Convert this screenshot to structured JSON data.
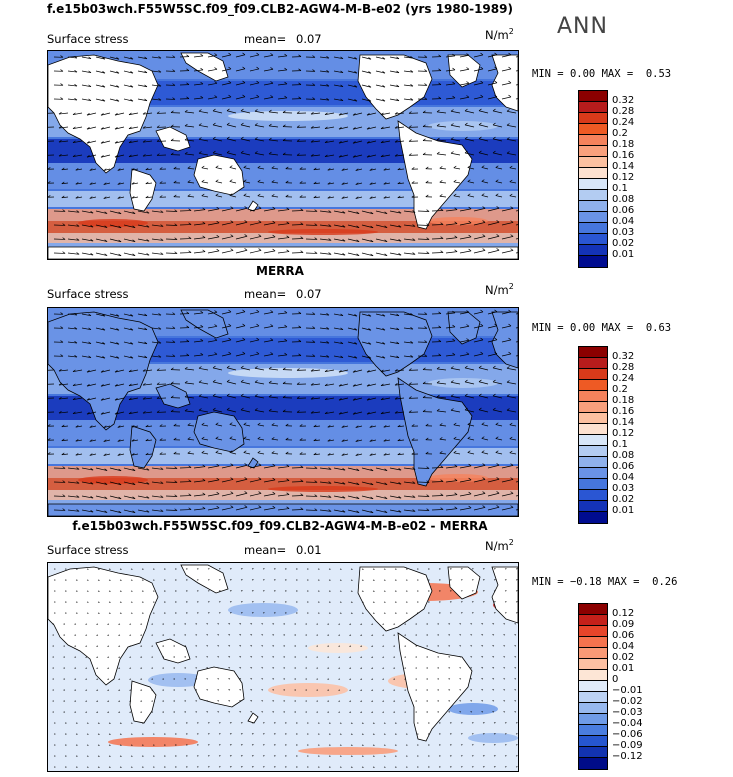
{
  "season_label": "ANN",
  "panels": [
    {
      "title": "f.e15b03wch.F55W5SC.f09_f09.CLB2-AGW4-M-B-e02 (yrs 1980-1989)",
      "variable": "Surface stress",
      "mean_label": "mean=",
      "mean_value": "0.07",
      "units": "N/m",
      "units_exp": "2",
      "min_label": "MIN =",
      "min_value": "0.00",
      "max_label": "MAX =",
      "max_value": "0.53",
      "levels": [
        "0.32",
        "0.28",
        "0.24",
        "0.2",
        "0.18",
        "0.16",
        "0.14",
        "0.12",
        "0.1",
        "0.08",
        "0.06",
        "0.04",
        "0.03",
        "0.02",
        "0.01"
      ],
      "colors": [
        "#8b0000",
        "#b71c1c",
        "#d83a1a",
        "#ee5a24",
        "#f5825c",
        "#f9a07c",
        "#fcc0a0",
        "#fde1d0",
        "#d8e6f8",
        "#b3ccf2",
        "#8fb1ec",
        "#6a93e6",
        "#4676dd",
        "#2a56d3",
        "#1433b8",
        "#000c90"
      ],
      "style": "abs"
    },
    {
      "title": "MERRA",
      "variable": "Surface stress",
      "mean_label": "mean=",
      "mean_value": "0.07",
      "units": "N/m",
      "units_exp": "2",
      "min_label": "MIN =",
      "min_value": "0.00",
      "max_label": "MAX =",
      "max_value": "0.63",
      "levels": [
        "0.32",
        "0.28",
        "0.24",
        "0.2",
        "0.18",
        "0.16",
        "0.14",
        "0.12",
        "0.1",
        "0.08",
        "0.06",
        "0.04",
        "0.03",
        "0.02",
        "0.01"
      ],
      "colors": [
        "#8b0000",
        "#b71c1c",
        "#d83a1a",
        "#ee5a24",
        "#f5825c",
        "#f9a07c",
        "#fcc0a0",
        "#fde1d0",
        "#d8e6f8",
        "#b3ccf2",
        "#8fb1ec",
        "#6a93e6",
        "#4676dd",
        "#2a56d3",
        "#1433b8",
        "#000c90"
      ],
      "style": "abs"
    },
    {
      "title": "f.e15b03wch.F55W5SC.f09_f09.CLB2-AGW4-M-B-e02 - MERRA",
      "variable": "Surface stress",
      "mean_label": "mean=",
      "mean_value": "0.01",
      "units": "N/m",
      "units_exp": "2",
      "min_label": "MIN =",
      "min_value": "−0.18",
      "max_label": "MAX =",
      "max_value": "0.26",
      "levels": [
        "0.12",
        "0.09",
        "0.06",
        "0.04",
        "0.02",
        "0.01",
        "0",
        "−0.01",
        "−0.02",
        "−0.03",
        "−0.04",
        "−0.06",
        "−0.09",
        "−0.12"
      ],
      "colors": [
        "#8b0000",
        "#c4201a",
        "#e6452a",
        "#f5734e",
        "#fa9a76",
        "#fdc0a2",
        "#fde6d6",
        "#e0ebfa",
        "#bcd2f4",
        "#97b8ee",
        "#6f9be7",
        "#4a7ddf",
        "#2656cf",
        "#1233b0",
        "#000c88"
      ],
      "style": "diff"
    }
  ]
}
